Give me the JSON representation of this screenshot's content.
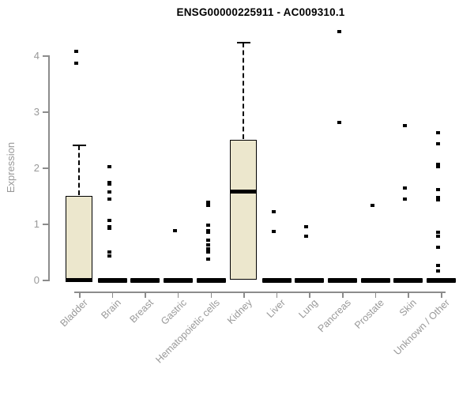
{
  "chart_data": {
    "type": "boxplot",
    "title": "ENSG00000225911 - AC009310.1",
    "ylabel": "Expression",
    "xlabel": "",
    "ylim": [
      0,
      4.45
    ],
    "yticks": [
      0,
      1,
      2,
      3,
      4
    ],
    "grid": false,
    "legend": "none",
    "colors": {
      "box_fill": "#ece7cd",
      "box_stroke": "#000000",
      "axis": "#8c8c8c",
      "axis_text": "#999999",
      "title_text": "#000000",
      "background": "#ffffff"
    },
    "categories": [
      "Bladder",
      "Brain",
      "Breast",
      "Gastric",
      "Hematopoietic cells",
      "Kidney",
      "Liver",
      "Lung",
      "Pancreas",
      "Prostate",
      "Skin",
      "Unknown / Other"
    ],
    "boxes": [
      {
        "category": "Bladder",
        "q1": 0,
        "median": 0,
        "q3": 1.5,
        "whisker_low": 0,
        "whisker_high": 2.4,
        "outliers": [
          4.07,
          3.86
        ]
      },
      {
        "category": "Brain",
        "q1": 0,
        "median": 0,
        "q3": 0,
        "whisker_low": 0,
        "whisker_high": 0,
        "outliers": [
          2.01,
          1.73,
          1.7,
          1.56,
          1.44,
          1.06,
          0.95,
          0.92,
          0.49,
          0.42
        ]
      },
      {
        "category": "Breast",
        "q1": 0,
        "median": 0,
        "q3": 0,
        "whisker_low": 0,
        "whisker_high": 0,
        "outliers": []
      },
      {
        "category": "Gastric",
        "q1": 0,
        "median": 0,
        "q3": 0,
        "whisker_low": 0,
        "whisker_high": 0,
        "outliers": [
          0.87
        ]
      },
      {
        "category": "Hematopoietic cells",
        "q1": 0,
        "median": 0,
        "q3": 0,
        "whisker_low": 0,
        "whisker_high": 0,
        "outliers": [
          1.38,
          1.33,
          0.97,
          0.88,
          0.85,
          0.7,
          0.62,
          0.55,
          0.49,
          0.36
        ]
      },
      {
        "category": "Kidney",
        "q1": 0,
        "median": 1.57,
        "q3": 2.5,
        "whisker_low": 0,
        "whisker_high": 4.22,
        "outliers": []
      },
      {
        "category": "Liver",
        "q1": 0,
        "median": 0,
        "q3": 0,
        "whisker_low": 0,
        "whisker_high": 0,
        "outliers": [
          1.21,
          0.86
        ]
      },
      {
        "category": "Lung",
        "q1": 0,
        "median": 0,
        "q3": 0,
        "whisker_low": 0,
        "whisker_high": 0,
        "outliers": [
          0.94,
          0.77
        ]
      },
      {
        "category": "Pancreas",
        "q1": 0,
        "median": 0,
        "q3": 0,
        "whisker_low": 0,
        "whisker_high": 0,
        "outliers": [
          4.42,
          2.8
        ]
      },
      {
        "category": "Prostate",
        "q1": 0,
        "median": 0,
        "q3": 0,
        "whisker_low": 0,
        "whisker_high": 0,
        "outliers": [
          1.32
        ]
      },
      {
        "category": "Skin",
        "q1": 0,
        "median": 0,
        "q3": 0,
        "whisker_low": 0,
        "whisker_high": 0,
        "outliers": [
          2.74,
          1.63,
          1.43
        ]
      },
      {
        "category": "Unknown / Other",
        "q1": 0,
        "median": 0,
        "q3": 0,
        "whisker_low": 0,
        "whisker_high": 0,
        "outliers": [
          2.62,
          2.42,
          2.06,
          2.01,
          1.6,
          1.46,
          1.42,
          0.84,
          0.78,
          0.58,
          0.26,
          0.15
        ]
      }
    ]
  }
}
